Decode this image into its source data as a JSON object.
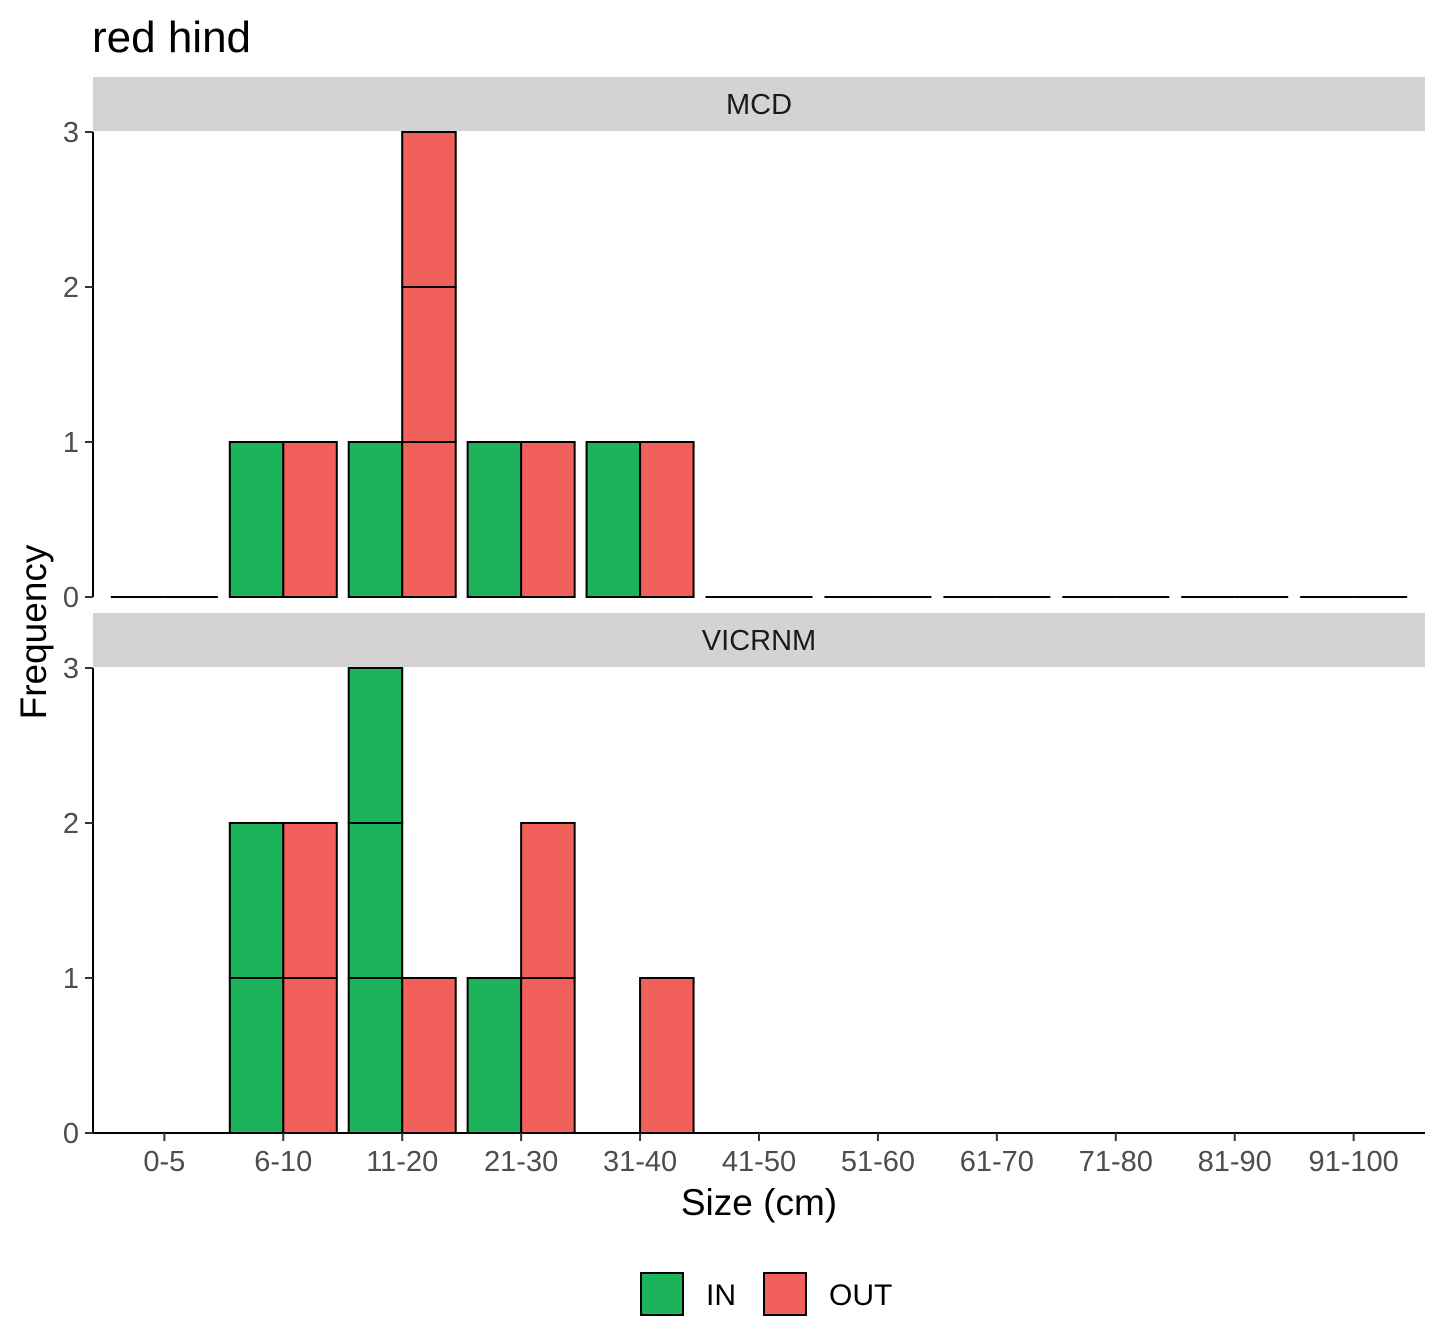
{
  "chart_data": {
    "type": "bar",
    "title": "red hind",
    "xlabel": "Size (cm)",
    "ylabel": "Frequency",
    "categories": [
      "0-5",
      "6-10",
      "11-20",
      "21-30",
      "31-40",
      "41-50",
      "51-60",
      "61-70",
      "71-80",
      "81-90",
      "91-100"
    ],
    "ylim": [
      0,
      3
    ],
    "yticks": [
      "0",
      "1",
      "2",
      "3"
    ],
    "grid": false,
    "legend_position": "bottom",
    "legend": [
      {
        "name": "IN",
        "color": "#1db35a"
      },
      {
        "name": "OUT",
        "color": "#f2605b"
      }
    ],
    "panels": [
      {
        "label": "MCD",
        "series": [
          {
            "name": "IN",
            "values": [
              0,
              1,
              1,
              1,
              1,
              0,
              0,
              0,
              0,
              0,
              0
            ]
          },
          {
            "name": "OUT",
            "values": [
              0,
              1,
              3,
              1,
              1,
              0,
              0,
              0,
              0,
              0,
              0
            ]
          }
        ]
      },
      {
        "label": "VICRNM",
        "series": [
          {
            "name": "IN",
            "values": [
              0,
              2,
              3,
              1,
              0,
              0,
              0,
              0,
              0,
              0,
              0
            ]
          },
          {
            "name": "OUT",
            "values": [
              0,
              2,
              1,
              2,
              1,
              0,
              0,
              0,
              0,
              0,
              0
            ]
          }
        ]
      }
    ]
  },
  "colors": {
    "in": "#1db35a",
    "out": "#f2605b",
    "strip": "#d3d3d3"
  }
}
